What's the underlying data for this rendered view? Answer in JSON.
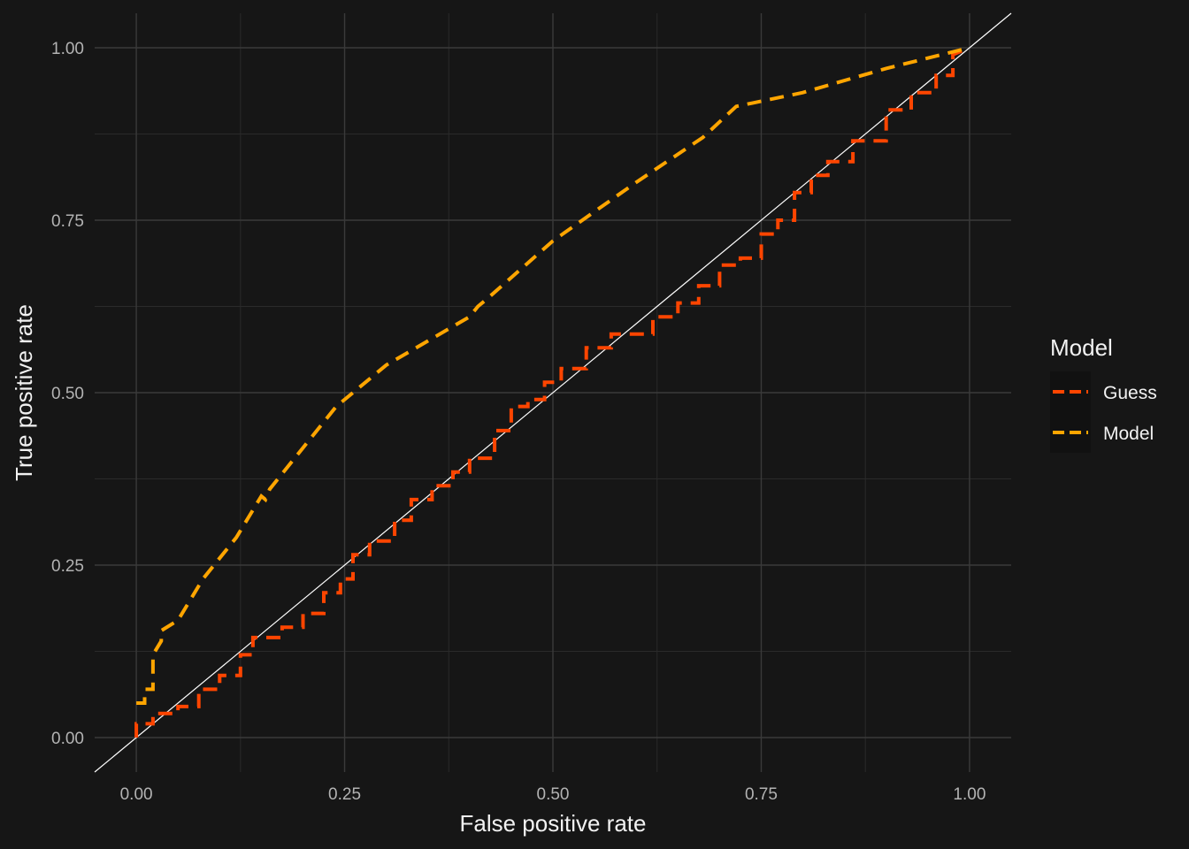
{
  "chart_data": {
    "type": "line",
    "title": "",
    "xlabel": "False positive rate",
    "ylabel": "True positive rate",
    "xlim": [
      -0.05,
      1.05
    ],
    "ylim": [
      -0.05,
      1.05
    ],
    "x_ticks": [
      0,
      0.25,
      0.5,
      0.75,
      1
    ],
    "x_tick_labels": [
      "0.00",
      "0.25",
      "0.50",
      "0.75",
      "1.00"
    ],
    "y_ticks": [
      0,
      0.25,
      0.5,
      0.75,
      1
    ],
    "y_tick_labels": [
      "0.00",
      "0.25",
      "0.50",
      "0.75",
      "1.00"
    ],
    "grid": true,
    "reference_line": {
      "x": [
        -0.05,
        1.05
      ],
      "y": [
        -0.05,
        1.05
      ],
      "color": "#ffffff"
    },
    "legend": {
      "title": "Model",
      "position": "right"
    },
    "series": [
      {
        "name": "Guess",
        "color": "#ff4500",
        "line_style": "dashed",
        "x": [
          0.0,
          0.0,
          0.02,
          0.02,
          0.05,
          0.05,
          0.075,
          0.075,
          0.1,
          0.1,
          0.125,
          0.125,
          0.14,
          0.14,
          0.175,
          0.175,
          0.2,
          0.2,
          0.225,
          0.225,
          0.245,
          0.245,
          0.26,
          0.26,
          0.28,
          0.28,
          0.31,
          0.31,
          0.33,
          0.33,
          0.355,
          0.355,
          0.38,
          0.38,
          0.4,
          0.4,
          0.43,
          0.43,
          0.45,
          0.45,
          0.47,
          0.47,
          0.49,
          0.49,
          0.51,
          0.51,
          0.54,
          0.54,
          0.57,
          0.57,
          0.62,
          0.62,
          0.65,
          0.65,
          0.675,
          0.675,
          0.7,
          0.7,
          0.725,
          0.725,
          0.75,
          0.75,
          0.77,
          0.77,
          0.79,
          0.79,
          0.81,
          0.81,
          0.83,
          0.83,
          0.86,
          0.86,
          0.9,
          0.9,
          0.93,
          0.93,
          0.96,
          0.96,
          0.98,
          0.98,
          1.0
        ],
        "y": [
          0.0,
          0.02,
          0.02,
          0.035,
          0.035,
          0.045,
          0.045,
          0.07,
          0.07,
          0.09,
          0.09,
          0.12,
          0.12,
          0.145,
          0.145,
          0.16,
          0.16,
          0.18,
          0.18,
          0.21,
          0.21,
          0.23,
          0.23,
          0.265,
          0.265,
          0.285,
          0.285,
          0.315,
          0.315,
          0.345,
          0.345,
          0.365,
          0.365,
          0.385,
          0.385,
          0.405,
          0.405,
          0.445,
          0.445,
          0.48,
          0.48,
          0.49,
          0.49,
          0.515,
          0.515,
          0.535,
          0.535,
          0.565,
          0.565,
          0.585,
          0.585,
          0.61,
          0.61,
          0.63,
          0.63,
          0.655,
          0.655,
          0.685,
          0.685,
          0.695,
          0.695,
          0.73,
          0.73,
          0.75,
          0.75,
          0.79,
          0.79,
          0.815,
          0.815,
          0.835,
          0.835,
          0.865,
          0.865,
          0.91,
          0.91,
          0.935,
          0.935,
          0.96,
          0.96,
          0.99,
          1.0
        ]
      },
      {
        "name": "Model",
        "color": "#ffa500",
        "line_style": "dashed",
        "x": [
          0.0,
          0.01,
          0.01,
          0.02,
          0.02,
          0.03,
          0.03,
          0.05,
          0.08,
          0.12,
          0.15,
          0.155,
          0.16,
          0.2,
          0.24,
          0.27,
          0.28,
          0.3,
          0.35,
          0.4,
          0.41,
          0.42,
          0.5,
          0.6,
          0.68,
          0.72,
          0.74,
          0.8,
          0.9,
          1.0
        ],
        "y": [
          0.05,
          0.05,
          0.07,
          0.07,
          0.12,
          0.14,
          0.155,
          0.17,
          0.23,
          0.29,
          0.35,
          0.345,
          0.36,
          0.42,
          0.48,
          0.51,
          0.52,
          0.54,
          0.575,
          0.61,
          0.625,
          0.635,
          0.72,
          0.805,
          0.87,
          0.915,
          0.92,
          0.935,
          0.97,
          1.0
        ]
      }
    ]
  }
}
